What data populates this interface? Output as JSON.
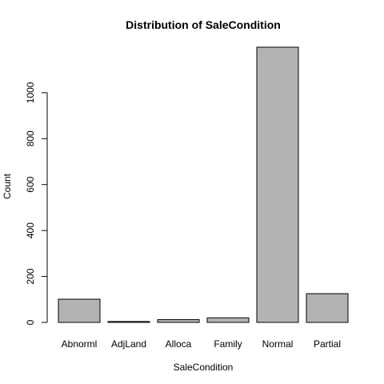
{
  "chart_data": {
    "type": "bar",
    "title": "Distribution of SaleCondition",
    "xlabel": "SaleCondition",
    "ylabel": "Count",
    "categories": [
      "Abnorml",
      "AdjLand",
      "Alloca",
      "Family",
      "Normal",
      "Partial"
    ],
    "values": [
      101,
      4,
      12,
      20,
      1198,
      125
    ],
    "ylim": [
      0,
      1198
    ],
    "yticks": [
      0,
      200,
      400,
      600,
      800,
      1000
    ],
    "bar_color": "#b3b3b3",
    "grid": false
  }
}
